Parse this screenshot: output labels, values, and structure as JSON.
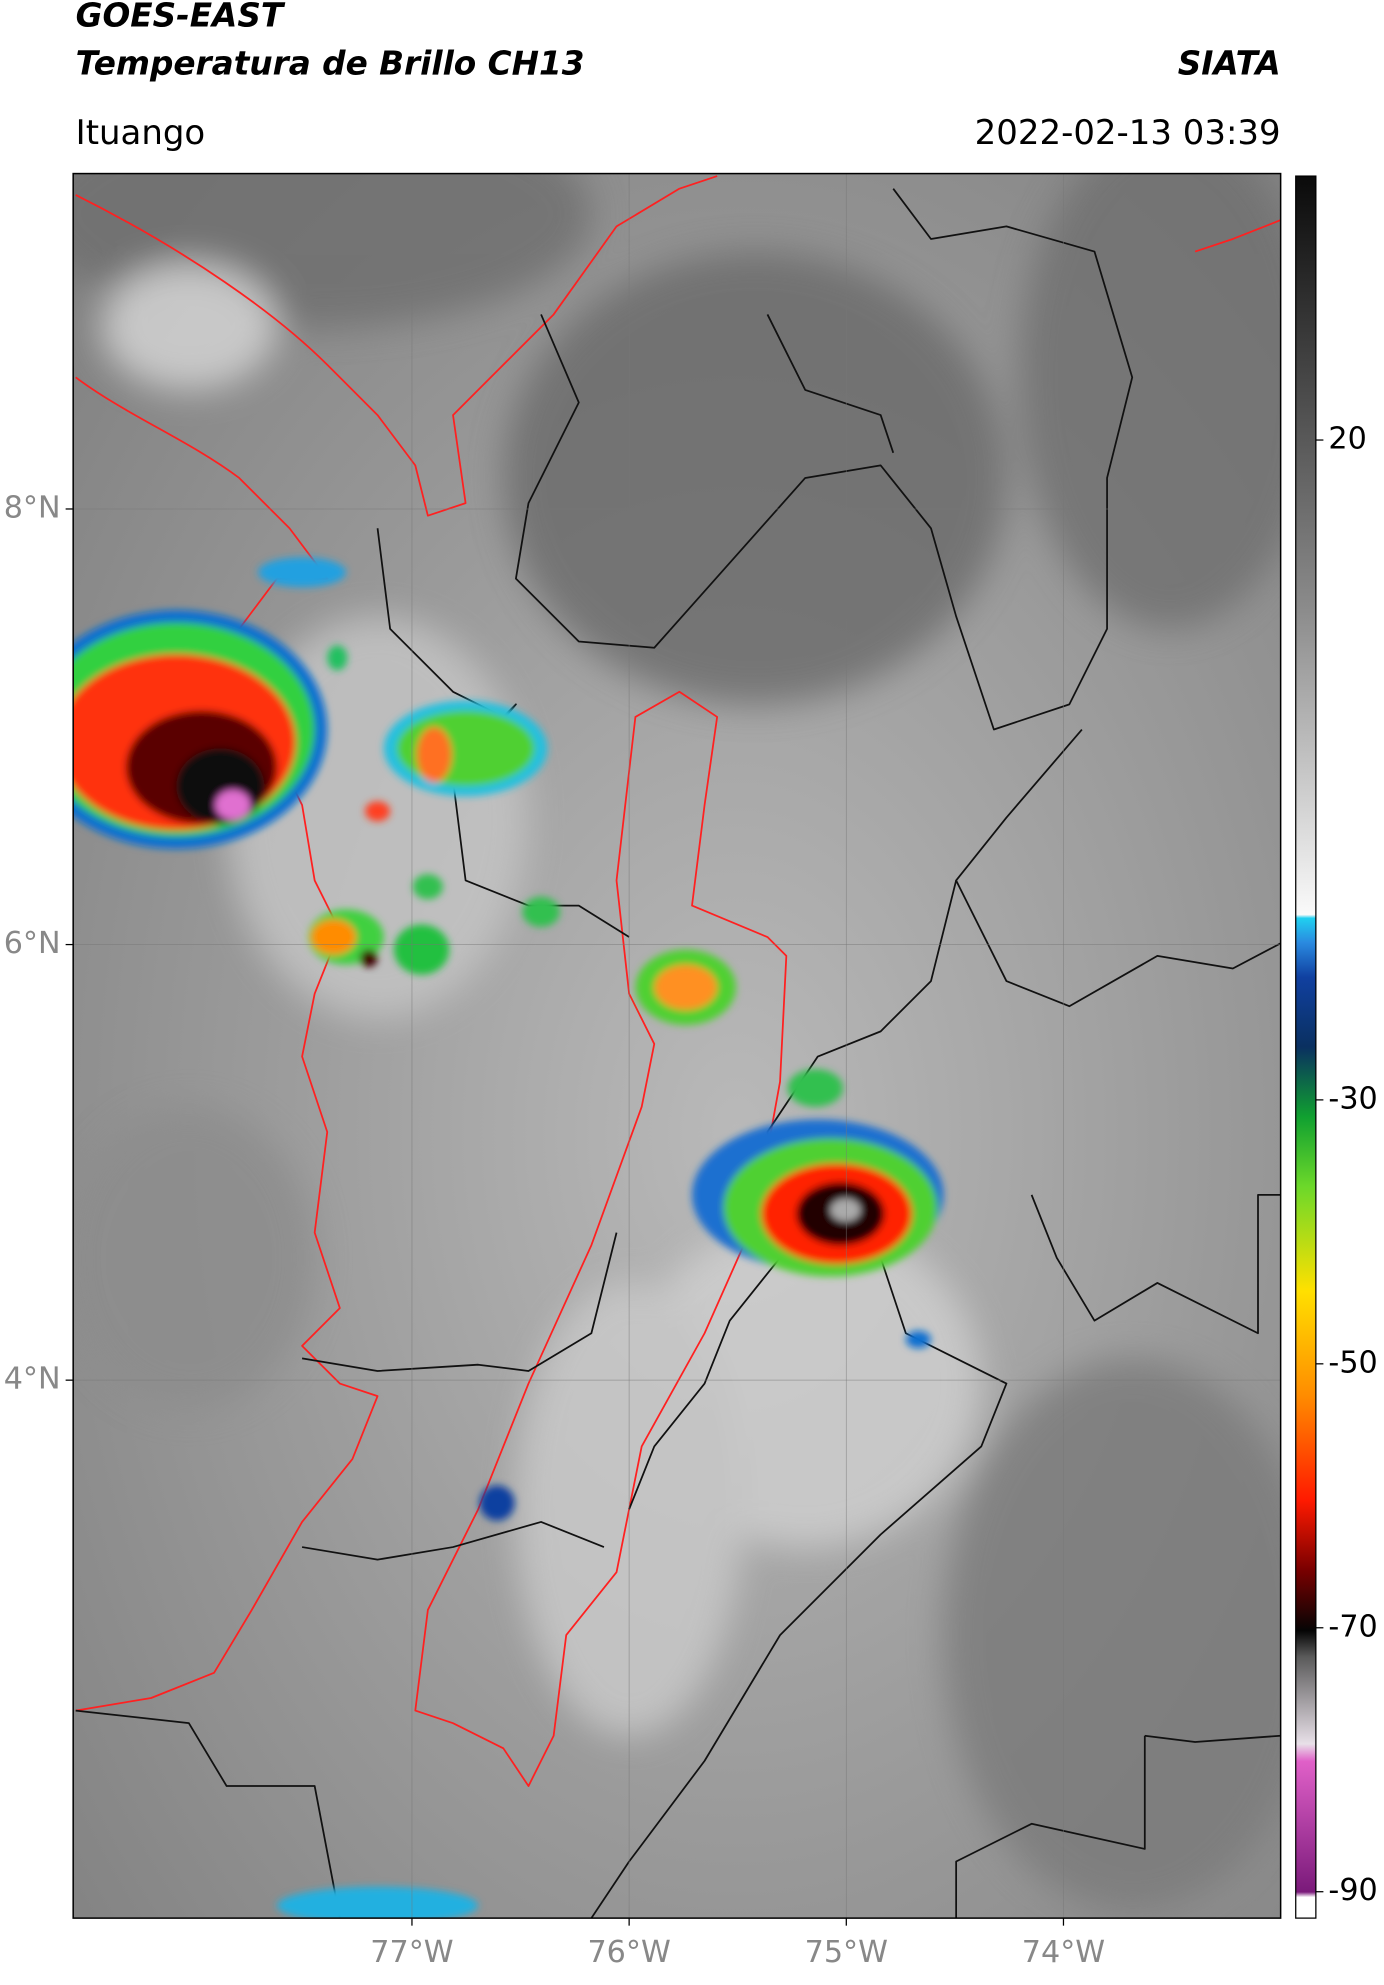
{
  "header": {
    "title": "GOES-EAST",
    "subtitle": "Temperatura de Brillo CH13",
    "brand": "SIATA",
    "location": "Ituango",
    "datetime": "2022-02-13 03:39"
  },
  "map": {
    "xlim": [
      -78.56,
      -73.0
    ],
    "ylim": [
      1.53,
      9.54
    ],
    "xticks": [
      {
        "value": -77,
        "label": "77°W"
      },
      {
        "value": -76,
        "label": "76°W"
      },
      {
        "value": -75,
        "label": "75°W"
      },
      {
        "value": -74,
        "label": "74°W"
      }
    ],
    "yticks": [
      {
        "value": 8,
        "label": "8°N"
      },
      {
        "value": 6,
        "label": "6°N"
      },
      {
        "value": 4,
        "label": "4°N"
      }
    ],
    "grid": true
  },
  "colorbar": {
    "clim": [
      -92,
      40
    ],
    "ticks": [
      -90,
      -70,
      -50,
      -30,
      20
    ]
  }
}
